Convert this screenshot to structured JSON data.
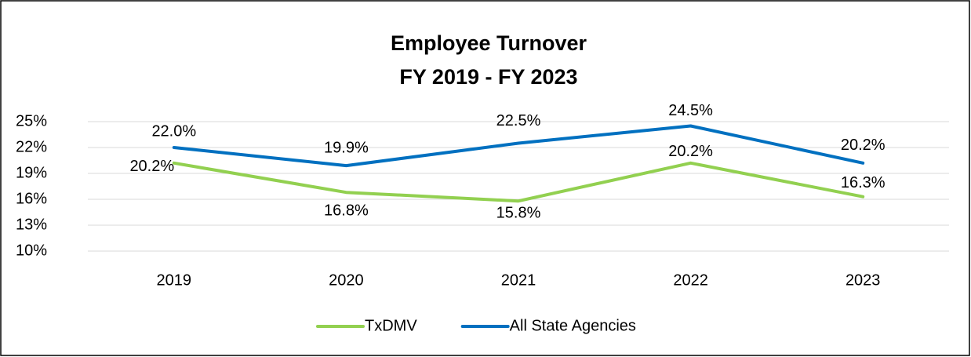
{
  "chart_data": {
    "type": "line",
    "title": "Employee Turnover",
    "subtitle": "FY 2019 - FY 2023",
    "categories": [
      "2019",
      "2020",
      "2021",
      "2022",
      "2023"
    ],
    "series": [
      {
        "name": "TxDMV",
        "color": "#92d050",
        "values": [
          20.2,
          16.8,
          15.8,
          20.2,
          16.3
        ],
        "value_labels": [
          "20.2%",
          "16.8%",
          "15.8%",
          "20.2%",
          "16.3%"
        ]
      },
      {
        "name": "All State Agencies",
        "color": "#0070c0",
        "values": [
          22.0,
          19.9,
          22.5,
          24.5,
          20.2
        ],
        "value_labels": [
          "22.0%",
          "19.9%",
          "22.5%",
          "24.5%",
          "20.2%"
        ]
      }
    ],
    "ylim": [
      10,
      25
    ],
    "yticks": [
      {
        "value": 10,
        "label": "10%"
      },
      {
        "value": 13,
        "label": "13%"
      },
      {
        "value": 16,
        "label": "16%"
      },
      {
        "value": 19,
        "label": "19%"
      },
      {
        "value": 22,
        "label": "22%"
      },
      {
        "value": 25,
        "label": "25%"
      }
    ],
    "grid": true,
    "legend": "bottom"
  }
}
